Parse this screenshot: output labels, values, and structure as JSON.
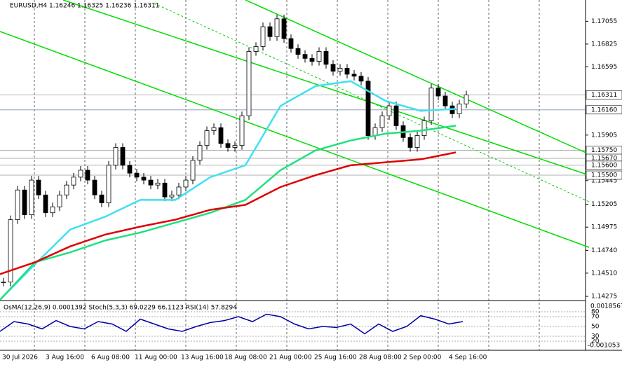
{
  "header": "EURUSD,H4  1.16246 1.16325 1.16236 1.16311",
  "price_axis": {
    "ylim": [
      1.1424,
      1.1727
    ],
    "ticks": [
      {
        "value": 1.17055,
        "label": "1.17055"
      },
      {
        "value": 1.16825,
        "label": "1.16825"
      },
      {
        "value": 1.16595,
        "label": "1.16595"
      },
      {
        "value": 1.15905,
        "label": "1.15905"
      },
      {
        "value": 1.15445,
        "label": "1.15445"
      },
      {
        "value": 1.15205,
        "label": "1.15205"
      },
      {
        "value": 1.14975,
        "label": "1.14975"
      },
      {
        "value": 1.1474,
        "label": "1.14740"
      },
      {
        "value": 1.1451,
        "label": "1.14510"
      },
      {
        "value": 1.14275,
        "label": "1.14275"
      }
    ],
    "levels": [
      {
        "value": 1.16311,
        "label": "1.16311"
      },
      {
        "value": 1.1616,
        "label": "1.16160"
      },
      {
        "value": 1.1575,
        "label": "1.15750"
      },
      {
        "value": 1.1567,
        "label": "1.15670"
      },
      {
        "value": 1.156,
        "label": "1.15600"
      },
      {
        "value": 1.155,
        "label": "1.15500"
      }
    ]
  },
  "time_axis": [
    "30 Jul 2026",
    "3 Aug 16:00",
    "6 Aug 08:00",
    "11 Aug 00:00",
    "13 Aug 16:00",
    "18 Aug 08:00",
    "21 Aug 00:00",
    "25 Aug 16:00",
    "28 Aug 08:00",
    "2 Sep 00:00",
    "4 Sep 16:00"
  ],
  "closes": [
    1.1442,
    1.1505,
    1.1535,
    1.151,
    1.1545,
    1.153,
    1.1512,
    1.1518,
    1.153,
    1.154,
    1.1548,
    1.1555,
    1.1545,
    1.153,
    1.1522,
    1.156,
    1.1578,
    1.156,
    1.1552,
    1.1548,
    1.1545,
    1.154,
    1.1542,
    1.1528,
    1.153,
    1.1538,
    1.1545,
    1.1565,
    1.158,
    1.1595,
    1.1598,
    1.1582,
    1.1578,
    1.158,
    1.161,
    1.1675,
    1.168,
    1.17,
    1.169,
    1.1708,
    1.1688,
    1.1678,
    1.1672,
    1.1668,
    1.1665,
    1.1675,
    1.1662,
    1.1655,
    1.1658,
    1.1652,
    1.165,
    1.1645,
    1.159,
    1.1598,
    1.161,
    1.162,
    1.16,
    1.1588,
    1.1578,
    1.159,
    1.1605,
    1.1638,
    1.163,
    1.162,
    1.1612,
    1.1622,
    1.16311
  ],
  "moving_averages": [
    {
      "color": "#40e0f0",
      "values": [
        1.1424,
        1.146,
        1.1495,
        1.1508,
        1.1525,
        1.1525,
        1.1548,
        1.156,
        1.162,
        1.164,
        1.1645,
        1.1625,
        1.1615,
        1.1617
      ]
    },
    {
      "color": "#20e080",
      "values": [
        1.1424,
        1.1462,
        1.1472,
        1.1484,
        1.1492,
        1.1502,
        1.1512,
        1.1525,
        1.1555,
        1.1575,
        1.1585,
        1.1592,
        1.1595,
        1.16
      ]
    },
    {
      "color": "#e00000",
      "values": [
        1.145,
        1.1462,
        1.1478,
        1.149,
        1.1498,
        1.1505,
        1.1515,
        1.152,
        1.1538,
        1.155,
        1.156,
        1.1563,
        1.1566,
        1.1573
      ]
    }
  ],
  "oscillator": {
    "title": "OsMA(12,26,9) 0.0001392  Stoch(5,3,3) 69.0229 66.1123  RSI(14) 57.8294",
    "top_label": "0.0018567",
    "bottom_label": "-0.001053",
    "levels": [
      80,
      70,
      50,
      30,
      20
    ],
    "rsi": [
      40,
      60,
      55,
      45,
      62,
      50,
      45,
      60,
      55,
      40,
      65,
      55,
      45,
      40,
      50,
      58,
      62,
      70,
      60,
      75,
      70,
      55,
      45,
      50,
      48,
      55,
      35,
      55,
      40,
      50,
      72,
      65,
      55,
      60
    ]
  }
}
